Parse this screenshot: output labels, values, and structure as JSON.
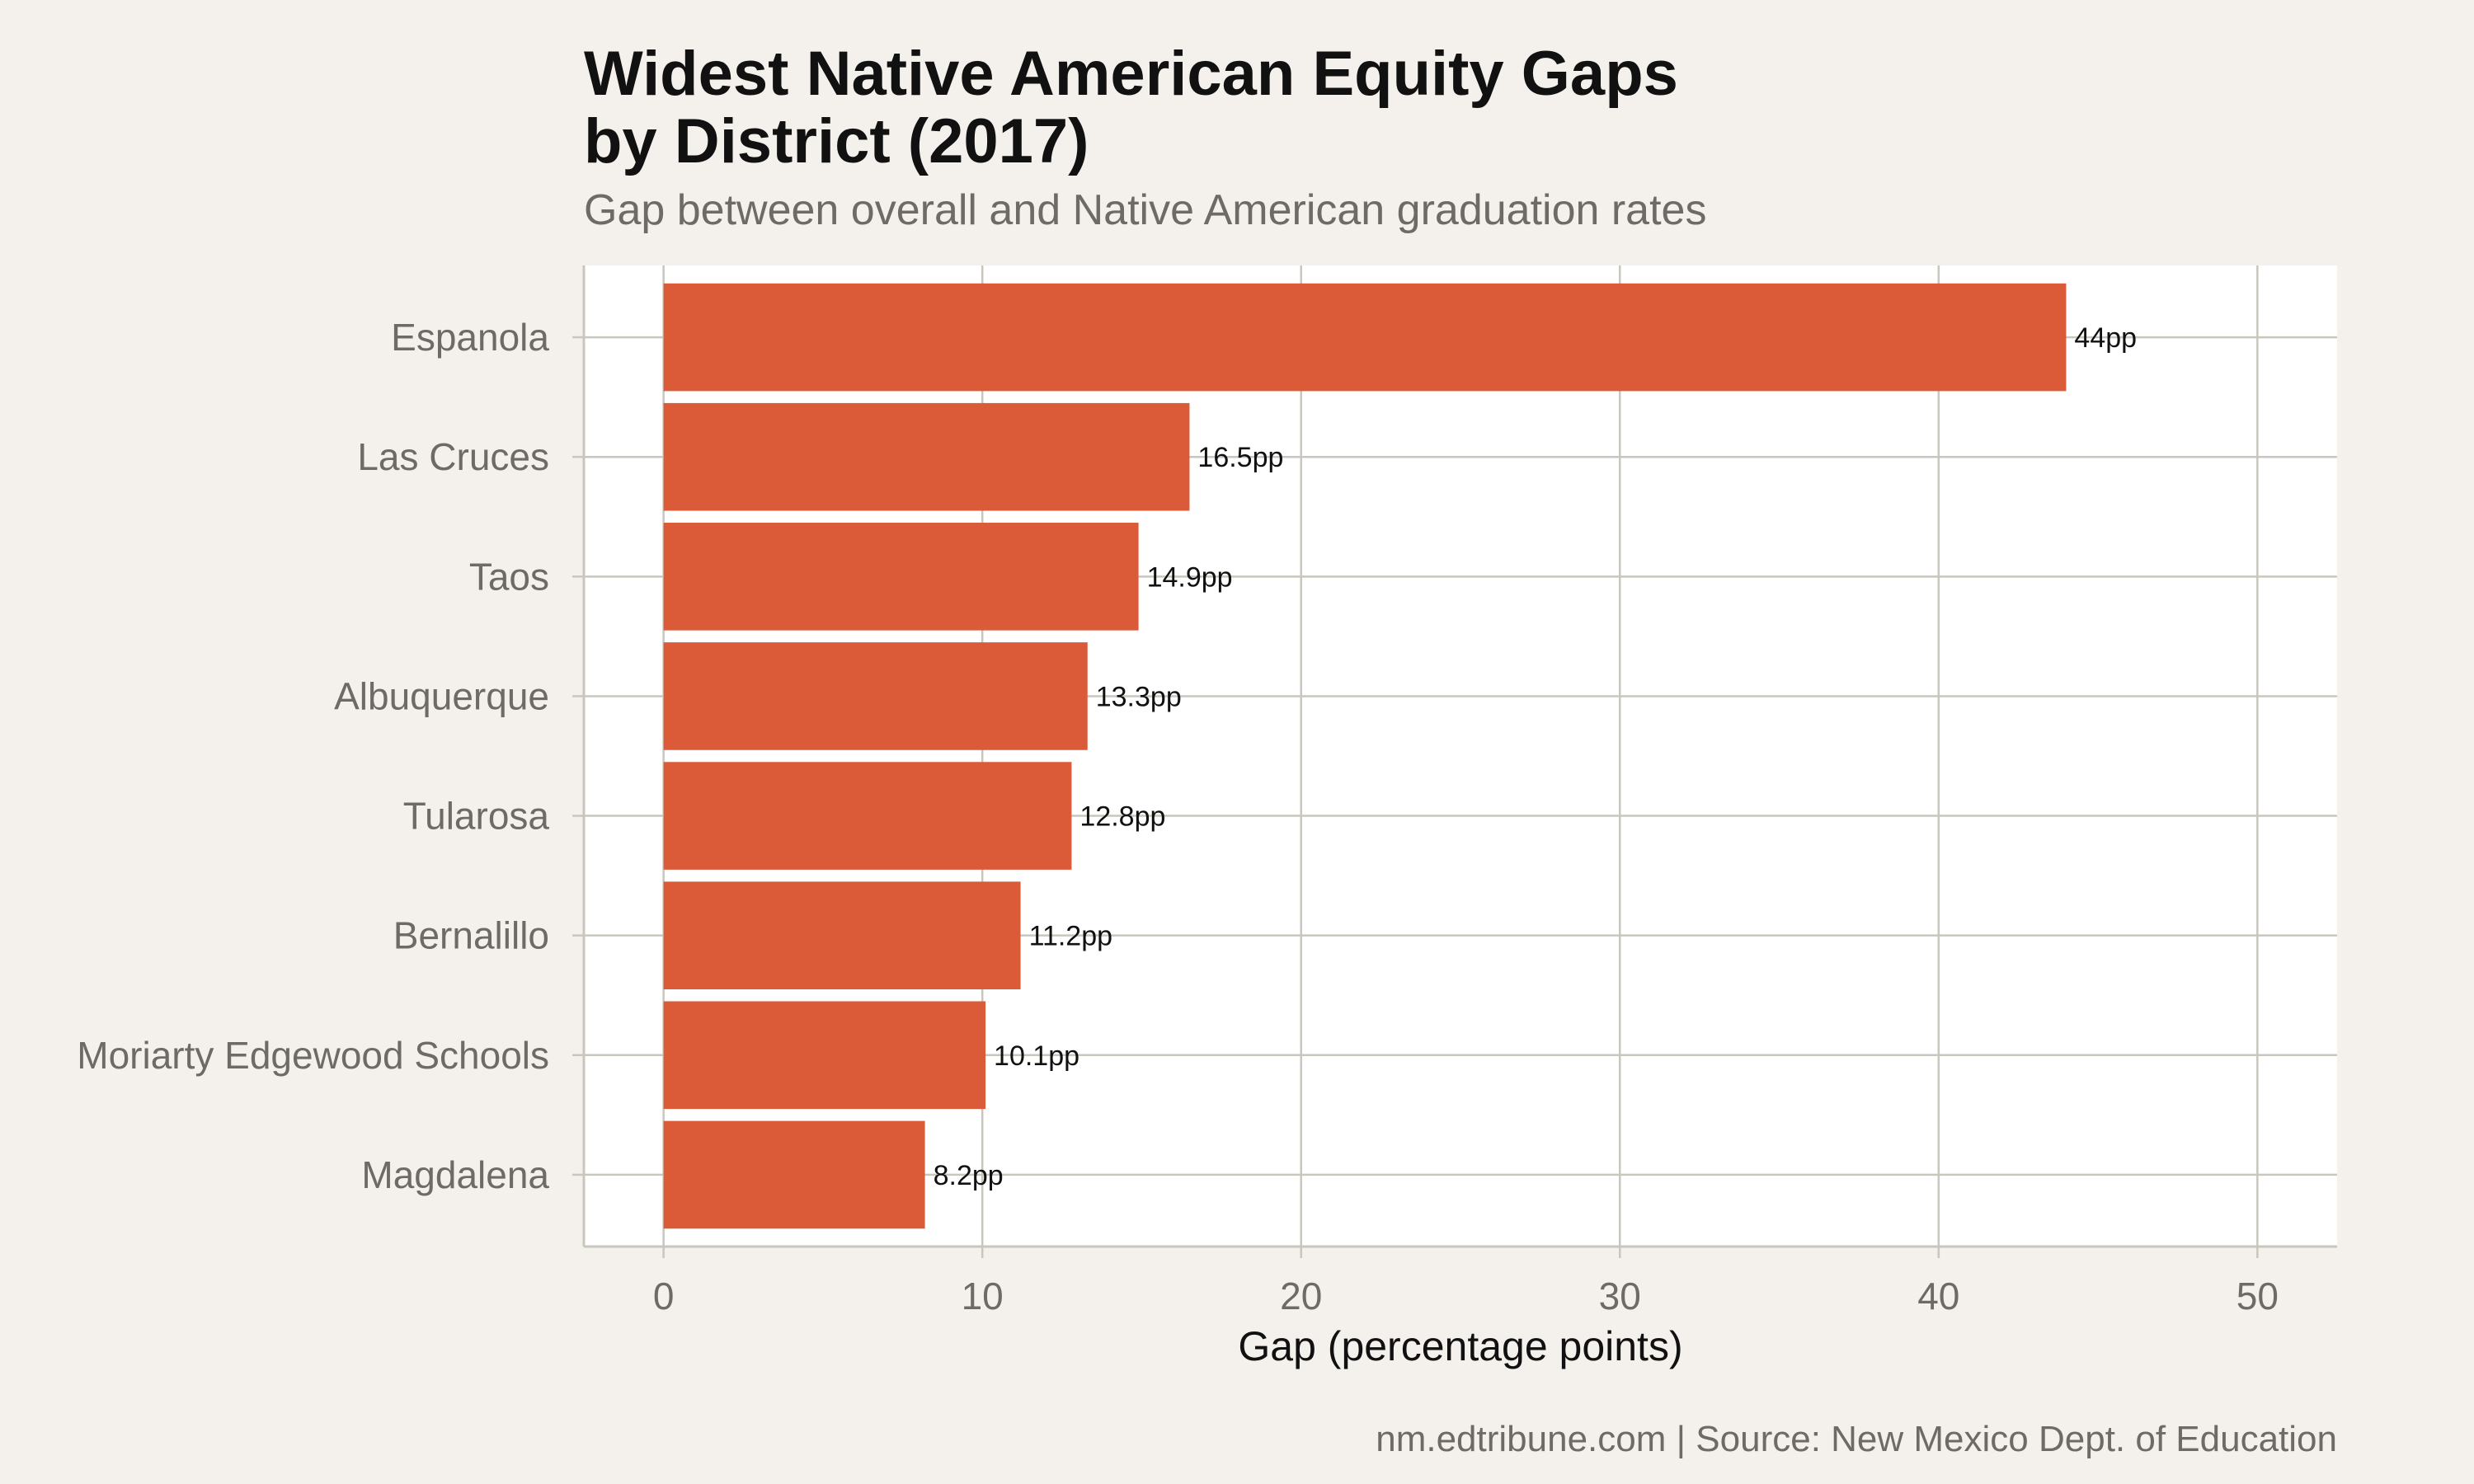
{
  "chart_data": {
    "type": "bar",
    "orientation": "horizontal",
    "title": "Widest Native American Equity Gaps\nby District (2017)",
    "subtitle": "Gap between overall and Native American graduation rates",
    "caption": "nm.edtribune.com | Source: New Mexico Dept. of Education",
    "xlabel": "Gap (percentage points)",
    "ylabel": "",
    "xlim": [
      -2.5,
      52.5
    ],
    "x_ticks": [
      0,
      10,
      20,
      30,
      40,
      50
    ],
    "x_tick_labels": [
      "0",
      "10",
      "20",
      "30",
      "40",
      "50"
    ],
    "grid": true,
    "legend": "none",
    "categories": [
      "Espanola",
      "Las Cruces",
      "Taos",
      "Albuquerque",
      "Tularosa",
      "Bernalillo",
      "Moriarty Edgewood Schools",
      "Magdalena"
    ],
    "values": [
      44,
      16.5,
      14.9,
      13.3,
      12.8,
      11.2,
      10.1,
      8.2
    ],
    "data_labels": [
      "44pp",
      "16.5pp",
      "14.9pp",
      "13.3pp",
      "12.8pp",
      "11.2pp",
      "10.1pp",
      "8.2pp"
    ]
  },
  "colors": {
    "background": "#F4F1EC",
    "panel": "#FFFFFF",
    "bar": "#DB5B38",
    "grid": "#C9C6BE",
    "axis_text": "#6E6A66",
    "title": "#111111"
  }
}
